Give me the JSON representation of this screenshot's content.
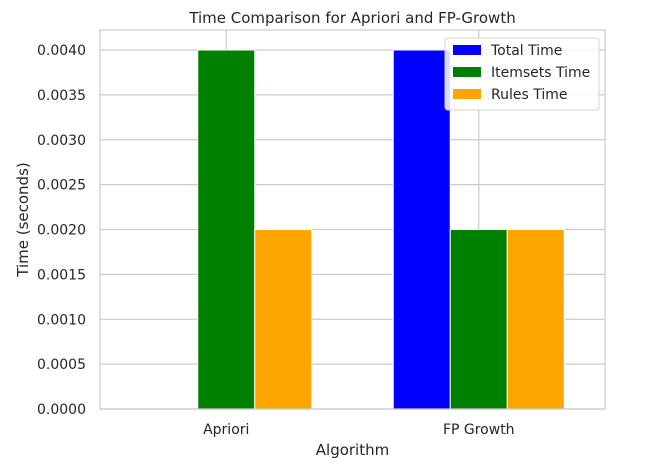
{
  "chart_data": {
    "type": "bar",
    "title": "Time Comparison for Apriori and FP-Growth",
    "xlabel": "Algorithm",
    "ylabel": "Time (seconds)",
    "categories": [
      "Apriori",
      "FP Growth"
    ],
    "series": [
      {
        "name": "Total Time",
        "color": "#0000ff",
        "values": [
          0.0,
          0.004
        ]
      },
      {
        "name": "Itemsets Time",
        "color": "#008000",
        "values": [
          0.004,
          0.002
        ]
      },
      {
        "name": "Rules Time",
        "color": "#ffa500",
        "values": [
          0.002,
          0.002
        ]
      }
    ],
    "ylim": [
      0,
      0.004
    ],
    "yticks": [
      "0.0000",
      "0.0005",
      "0.0010",
      "0.0015",
      "0.0020",
      "0.0025",
      "0.0030",
      "0.0035",
      "0.0040"
    ],
    "ytick_values": [
      0,
      0.0005,
      0.001,
      0.0015,
      0.002,
      0.0025,
      0.003,
      0.0035,
      0.004
    ],
    "grid": true,
    "legend_position": "top-right"
  }
}
